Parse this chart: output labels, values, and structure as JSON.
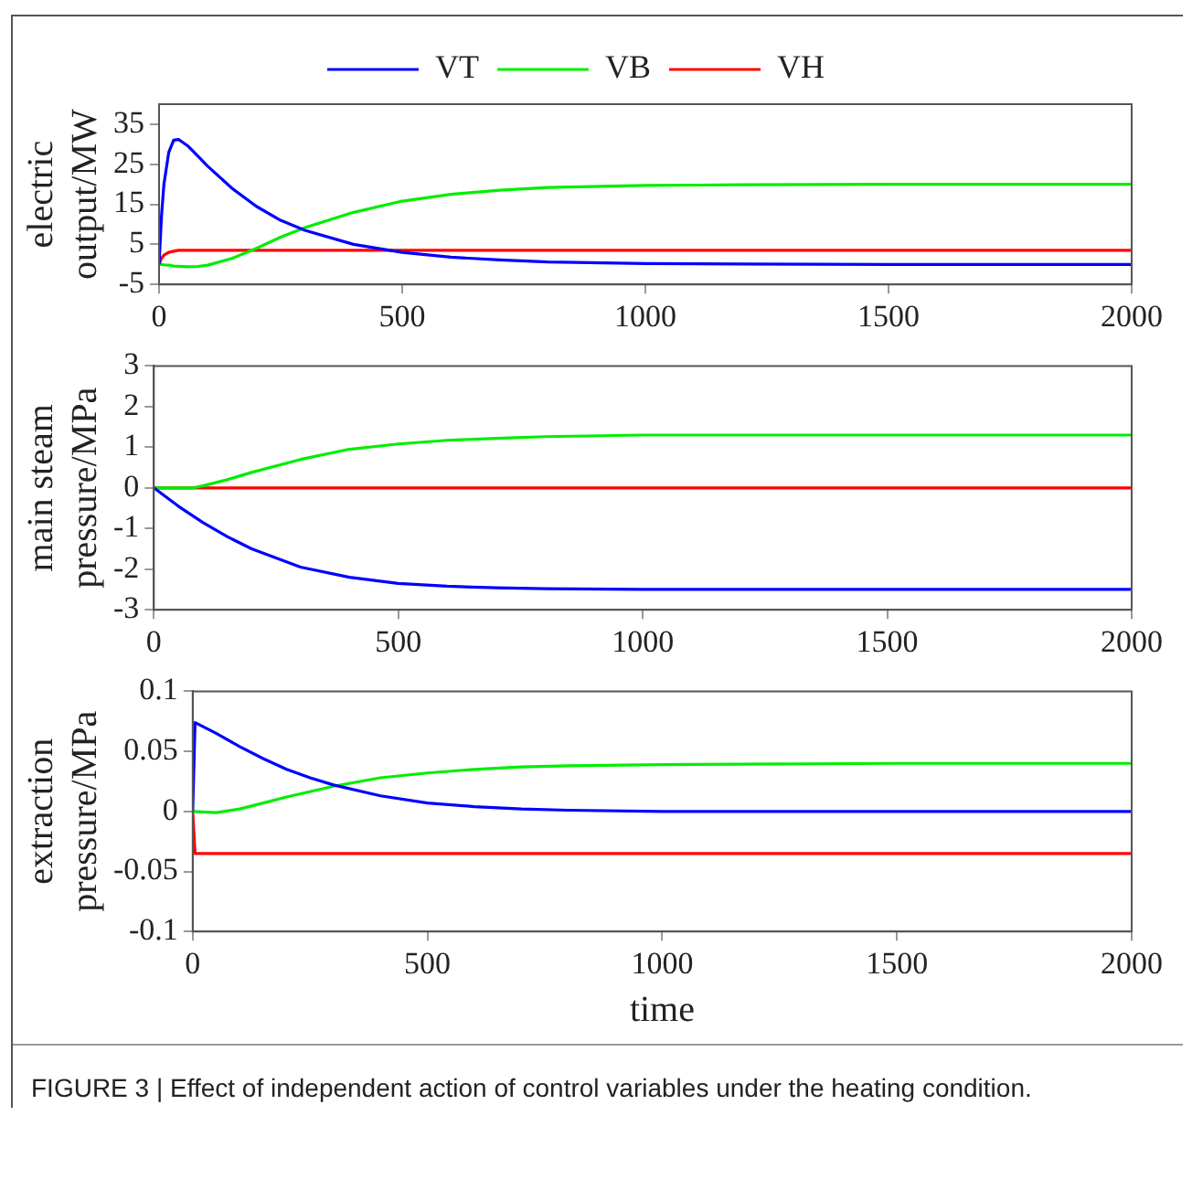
{
  "chart_data": [
    {
      "type": "line",
      "ylabel": "electric output/MW",
      "xlim": [
        0,
        2000
      ],
      "xticks": [
        0,
        500,
        1000,
        1500,
        2000
      ],
      "ylim": [
        -5,
        40
      ],
      "yticks": [
        -5,
        5,
        15,
        25,
        35
      ],
      "grid": false,
      "legend": "top",
      "marker": "none",
      "line_style": "solid",
      "series": [
        {
          "name": "VT",
          "color": "#0000ff",
          "x": [
            0,
            5,
            10,
            20,
            30,
            40,
            60,
            80,
            100,
            150,
            200,
            250,
            300,
            400,
            500,
            600,
            700,
            800,
            1000,
            1200,
            1500,
            2000
          ],
          "values": [
            0,
            12,
            20,
            28,
            31,
            31.2,
            29.5,
            27,
            24.5,
            19,
            14.5,
            11,
            8.5,
            5,
            3,
            1.8,
            1.1,
            0.6,
            0.2,
            0.1,
            0,
            0
          ]
        },
        {
          "name": "VB",
          "color": "#00ee00",
          "x": [
            0,
            5,
            10,
            20,
            30,
            60,
            80,
            100,
            150,
            200,
            250,
            300,
            400,
            500,
            600,
            700,
            800,
            1000,
            1200,
            1500,
            2000
          ],
          "values": [
            0,
            0,
            -0.1,
            -0.2,
            -0.4,
            -0.6,
            -0.5,
            -0.2,
            1.5,
            4,
            6.8,
            9.2,
            13,
            15.8,
            17.5,
            18.5,
            19.2,
            19.7,
            19.9,
            20,
            20
          ]
        },
        {
          "name": "VH",
          "color": "#ff0000",
          "x": [
            0,
            5,
            10,
            20,
            30,
            40,
            60,
            2000
          ],
          "values": [
            0,
            1.5,
            2.3,
            3,
            3.3,
            3.5,
            3.5,
            3.5
          ]
        }
      ]
    },
    {
      "type": "line",
      "ylabel": "main steam pressure/MPa",
      "xlim": [
        0,
        2000
      ],
      "xticks": [
        0,
        500,
        1000,
        1500,
        2000
      ],
      "ylim": [
        -3,
        3
      ],
      "yticks": [
        -3,
        -2,
        -1,
        0,
        1,
        2,
        3
      ],
      "grid": false,
      "marker": "none",
      "line_style": "solid",
      "series": [
        {
          "color": "#0000ff",
          "x": [
            0,
            50,
            100,
            150,
            200,
            300,
            400,
            500,
            600,
            700,
            800,
            1000,
            2000
          ],
          "values": [
            0,
            -0.45,
            -0.85,
            -1.2,
            -1.5,
            -1.95,
            -2.2,
            -2.35,
            -2.42,
            -2.46,
            -2.48,
            -2.5,
            -2.5
          ]
        },
        {
          "color": "#00ee00",
          "x": [
            0,
            80,
            100,
            150,
            200,
            300,
            400,
            500,
            600,
            700,
            800,
            1000,
            2000
          ],
          "values": [
            0,
            0,
            0.05,
            0.2,
            0.38,
            0.7,
            0.95,
            1.08,
            1.17,
            1.22,
            1.26,
            1.3,
            1.3
          ]
        },
        {
          "color": "#ff0000",
          "x": [
            0,
            2000
          ],
          "values": [
            0,
            0
          ]
        }
      ]
    },
    {
      "type": "line",
      "xlabel": "time",
      "ylabel": "extraction pressure/MPa",
      "xlim": [
        0,
        2000
      ],
      "xticks": [
        0,
        500,
        1000,
        1500,
        2000
      ],
      "ylim": [
        -0.1,
        0.1
      ],
      "yticks": [
        -0.1,
        -0.05,
        0,
        0.05,
        0.1
      ],
      "grid": false,
      "marker": "none",
      "line_style": "solid",
      "annotations": [
        "FIGURE 3 | Effect of independent action of control variables under the heating condition."
      ],
      "series": [
        {
          "color": "#0000ff",
          "x": [
            0,
            5,
            10,
            50,
            100,
            150,
            200,
            250,
            300,
            400,
            500,
            600,
            700,
            800,
            1000,
            2000
          ],
          "values": [
            0,
            0.074,
            0.073,
            0.065,
            0.054,
            0.044,
            0.035,
            0.028,
            0.022,
            0.013,
            0.007,
            0.004,
            0.002,
            0.001,
            0,
            0
          ]
        },
        {
          "color": "#00ee00",
          "x": [
            0,
            50,
            100,
            150,
            200,
            300,
            400,
            500,
            600,
            700,
            800,
            1000,
            1500,
            2000
          ],
          "values": [
            0,
            -0.001,
            0.002,
            0.007,
            0.012,
            0.021,
            0.028,
            0.032,
            0.035,
            0.037,
            0.038,
            0.039,
            0.04,
            0.04
          ]
        },
        {
          "color": "#ff0000",
          "x": [
            0,
            5,
            2000
          ],
          "values": [
            0,
            -0.035,
            -0.035
          ]
        }
      ]
    }
  ]
}
